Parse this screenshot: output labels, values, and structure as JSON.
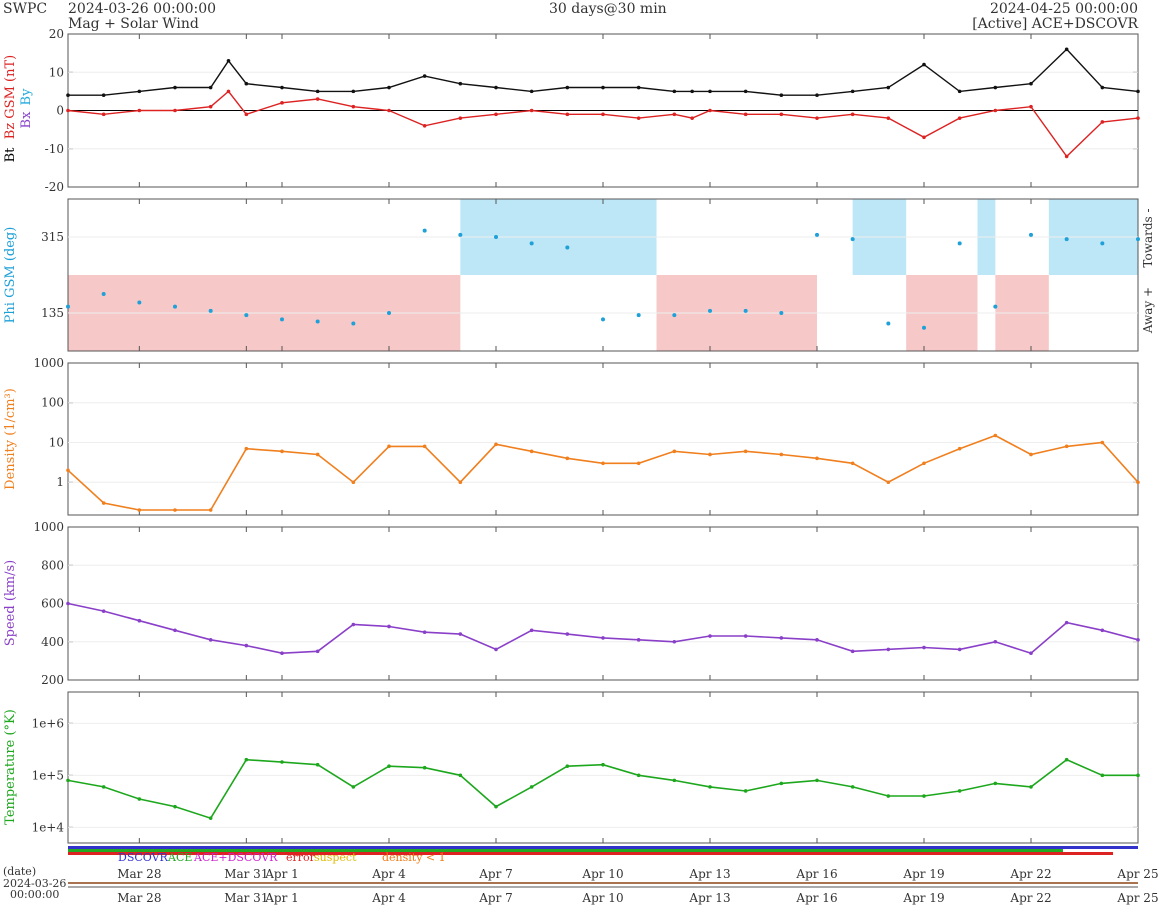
{
  "header": {
    "org": "SWPC",
    "start": "2024-03-26 00:00:00",
    "subtitle": "Mag + Solar Wind",
    "span": "30 days@30 min",
    "end": "2024-04-25 00:00:00",
    "source": "[Active] ACE+DSCOVR"
  },
  "footer": {
    "date_label": "(date)",
    "date_value": "2024-03-26",
    "time_value": "00:00:00",
    "legend": [
      {
        "text": "DSCOVR",
        "color": "#3333cc"
      },
      {
        "text": "ACE",
        "color": "#22aa22"
      },
      {
        "text": "ACE+DSCOVR",
        "color": "#cc22cc"
      },
      {
        "text": "error",
        "color": "#dd2222"
      },
      {
        "text": "suspect",
        "color": "#ddbb00"
      },
      {
        "text": "density < 1",
        "color": "#ee7711"
      }
    ]
  },
  "x_ticks": [
    "Mar 28",
    "Mar 31",
    "Apr 1",
    "Apr 4",
    "Apr 7",
    "Apr 10",
    "Apr 13",
    "Apr 16",
    "Apr 19",
    "Apr 22",
    "Apr 25"
  ],
  "chart_data": [
    {
      "type": "line",
      "panel": "mag",
      "ylabel_parts": [
        {
          "text": "Bt",
          "color": "#000000"
        },
        {
          "text": "Bz GSM (nT)",
          "color": "#dd2222"
        },
        {
          "text": "Bx",
          "color": "#8844cc"
        },
        {
          "text": "By",
          "color": "#22aadd"
        }
      ],
      "ylim": [
        -20,
        20
      ],
      "yticks": [
        "-20",
        "-10",
        "0",
        "10",
        "20"
      ],
      "x_days": [
        0,
        1,
        2,
        3,
        4,
        4.5,
        5,
        6,
        7,
        8,
        9,
        10,
        11,
        12,
        13,
        14,
        15,
        16,
        17,
        17.5,
        18,
        19,
        20,
        21,
        22,
        23,
        24,
        25,
        26,
        27,
        28,
        29,
        30
      ],
      "series": [
        {
          "name": "Bt",
          "color": "#111111",
          "values": [
            4,
            4,
            5,
            6,
            6,
            13,
            7,
            6,
            5,
            5,
            6,
            9,
            7,
            6,
            5,
            6,
            6,
            6,
            5,
            5,
            5,
            5,
            4,
            4,
            5,
            6,
            12,
            5,
            6,
            7,
            16,
            6,
            5
          ]
        },
        {
          "name": "Bz GSM",
          "color": "#dd2222",
          "values": [
            0,
            -1,
            0,
            0,
            1,
            5,
            -1,
            2,
            3,
            1,
            0,
            -4,
            -2,
            -1,
            0,
            -1,
            -1,
            -2,
            -1,
            -2,
            0,
            -1,
            -1,
            -2,
            -1,
            -2,
            -7,
            -2,
            0,
            1,
            -12,
            -3,
            -2
          ]
        }
      ]
    },
    {
      "type": "scatter",
      "panel": "phi",
      "ylabel": "Phi GSM (deg)",
      "yticks": [
        "135",
        "315"
      ],
      "right_labels": [
        "Towards -",
        "Away +"
      ],
      "x_days": [
        0,
        1,
        2,
        3,
        4,
        5,
        6,
        7,
        8,
        9,
        10,
        11,
        12,
        13,
        14,
        15,
        16,
        17,
        18,
        19,
        20,
        21,
        22,
        23,
        24,
        25,
        26,
        27,
        28,
        29,
        30
      ],
      "values": [
        150,
        180,
        160,
        150,
        140,
        130,
        120,
        115,
        110,
        135,
        330,
        320,
        315,
        300,
        290,
        120,
        130,
        130,
        140,
        140,
        135,
        320,
        310,
        110,
        100,
        300,
        150,
        320,
        310,
        300,
        310
      ],
      "towards_days": [
        [
          11,
          16.5
        ],
        [
          22,
          23.5
        ],
        [
          25.5,
          26
        ],
        [
          27.5,
          30
        ]
      ],
      "away_days": [
        [
          0,
          11
        ],
        [
          16.5,
          21
        ],
        [
          23.5,
          25.5
        ],
        [
          26,
          27.5
        ]
      ]
    },
    {
      "type": "line",
      "panel": "density",
      "ylabel": "Density (1/cm³)",
      "yscale": "log",
      "yticks": [
        "1",
        "10",
        "100",
        "1000"
      ],
      "x_days": [
        0,
        1,
        2,
        3,
        4,
        5,
        6,
        7,
        8,
        9,
        10,
        11,
        12,
        13,
        14,
        15,
        16,
        17,
        18,
        19,
        20,
        21,
        22,
        23,
        24,
        25,
        26,
        27,
        28,
        29,
        30
      ],
      "values": [
        2,
        0.3,
        0.2,
        0.2,
        0.2,
        7,
        6,
        5,
        1,
        8,
        8,
        1,
        9,
        6,
        4,
        3,
        3,
        6,
        5,
        6,
        5,
        4,
        3,
        1,
        3,
        7,
        15,
        5,
        8,
        10,
        1
      ]
    },
    {
      "type": "line",
      "panel": "speed",
      "ylabel": "Speed (km/s)",
      "ylim": [
        200,
        1000
      ],
      "yticks": [
        "200",
        "400",
        "600",
        "800",
        "1000"
      ],
      "x_days": [
        0,
        1,
        2,
        3,
        4,
        5,
        6,
        7,
        8,
        9,
        10,
        11,
        12,
        13,
        14,
        15,
        16,
        17,
        18,
        19,
        20,
        21,
        22,
        23,
        24,
        25,
        26,
        27,
        28,
        29,
        30
      ],
      "values": [
        600,
        560,
        510,
        460,
        410,
        380,
        340,
        350,
        490,
        480,
        450,
        440,
        360,
        460,
        440,
        420,
        410,
        400,
        430,
        430,
        420,
        410,
        350,
        360,
        370,
        360,
        400,
        340,
        500,
        460,
        410
      ]
    },
    {
      "type": "line",
      "panel": "temperature",
      "ylabel": "Temperature (°K)",
      "yscale": "log",
      "yticks": [
        "1e+4",
        "1e+5",
        "1e+6"
      ],
      "x_days": [
        0,
        1,
        2,
        3,
        4,
        5,
        6,
        7,
        8,
        9,
        10,
        11,
        12,
        13,
        14,
        15,
        16,
        17,
        18,
        19,
        20,
        21,
        22,
        23,
        24,
        25,
        26,
        27,
        28,
        29,
        30
      ],
      "values": [
        80000,
        60000,
        35000,
        25000,
        15000,
        200000,
        180000,
        160000,
        60000,
        150000,
        140000,
        100000,
        25000,
        60000,
        150000,
        160000,
        100000,
        80000,
        60000,
        50000,
        70000,
        80000,
        60000,
        40000,
        40000,
        50000,
        70000,
        60000,
        200000,
        100000,
        100000
      ]
    }
  ]
}
